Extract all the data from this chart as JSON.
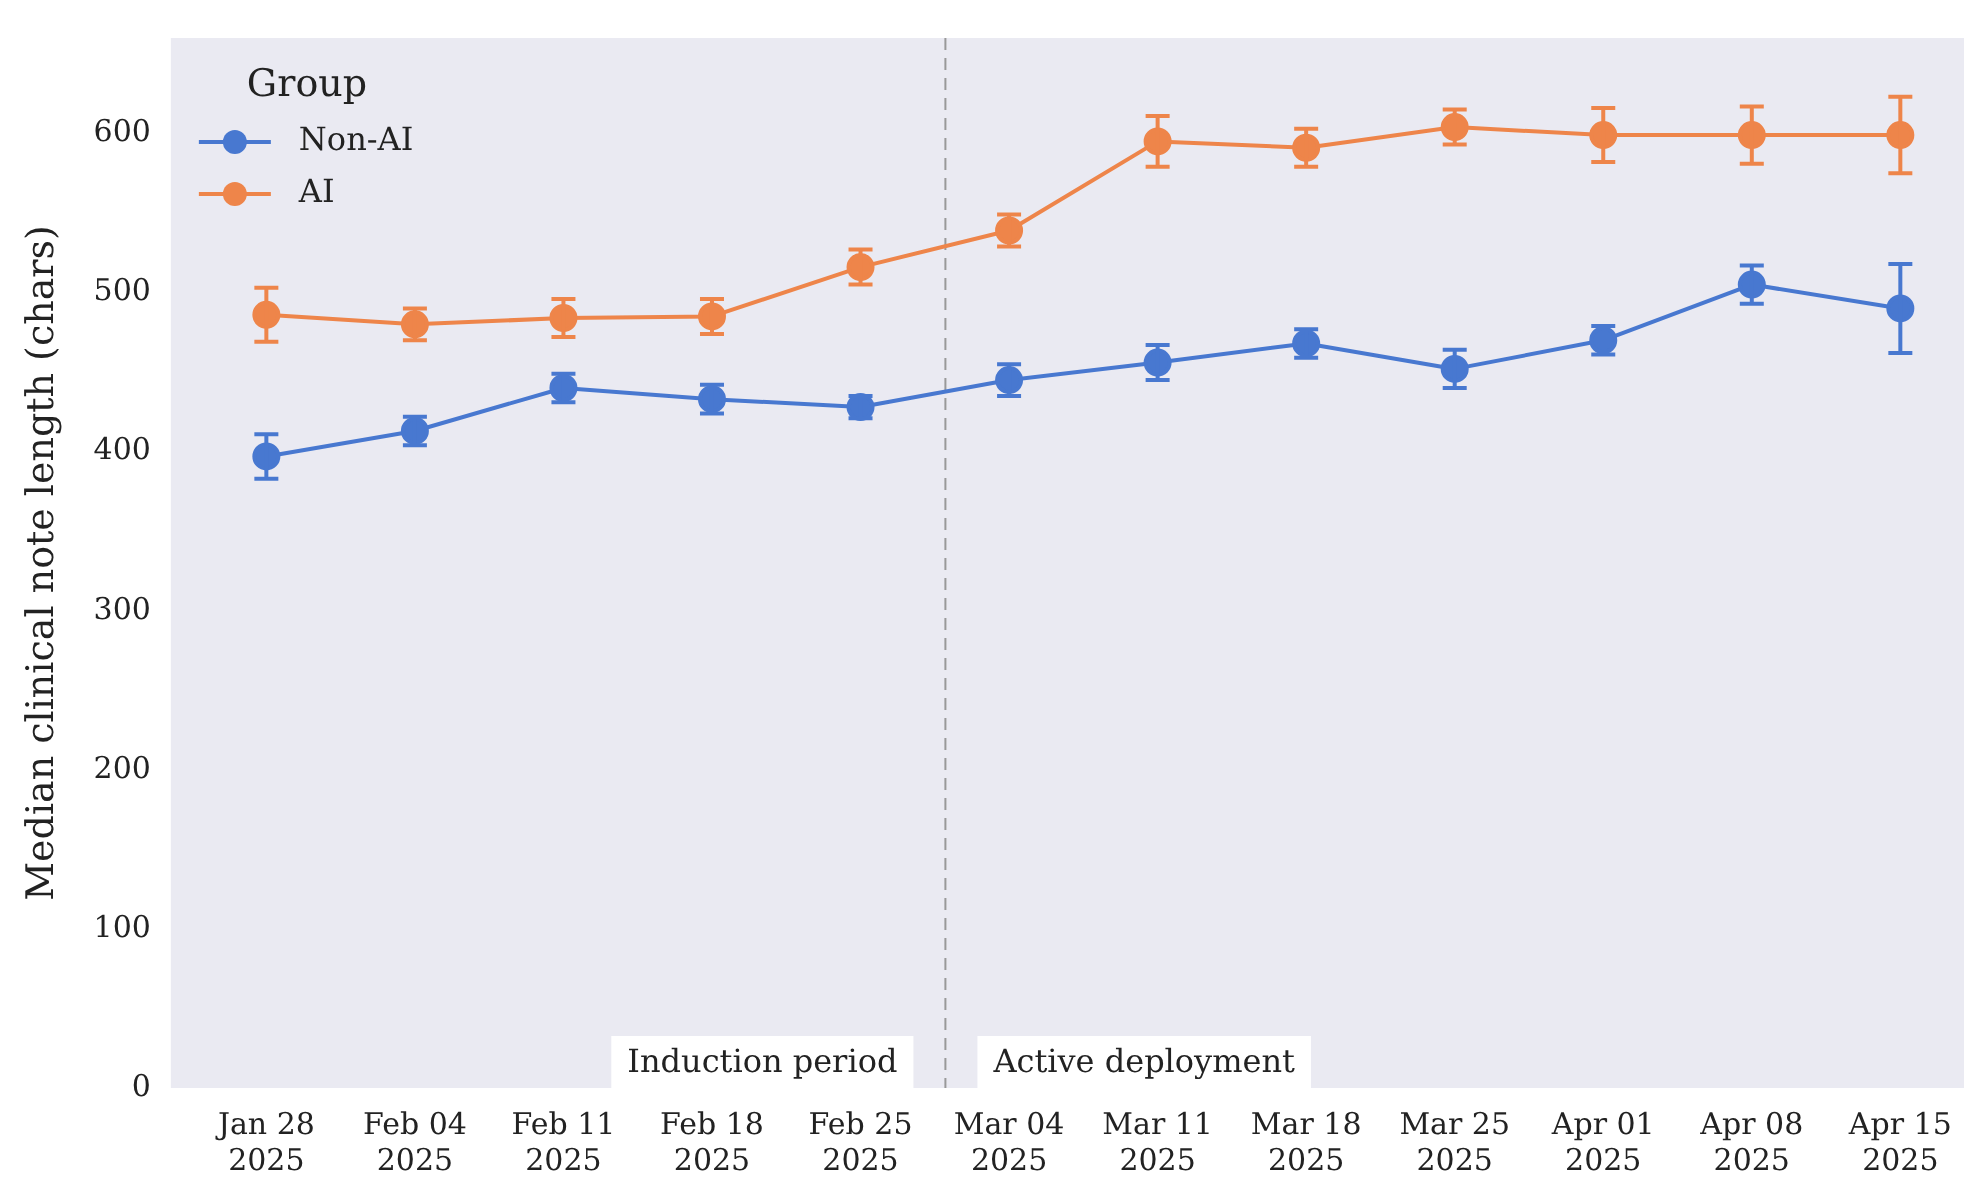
{
  "chart_data": {
    "type": "line",
    "ylabel": "Median clinical note length (chars)",
    "legend_title": "Group",
    "legend": "top left",
    "marker": "circle",
    "grid": false,
    "x": [
      "2025-01-28",
      "2025-02-04",
      "2025-02-11",
      "2025-02-18",
      "2025-02-25",
      "2025-03-04",
      "2025-03-11",
      "2025-03-18",
      "2025-03-25",
      "2025-04-01",
      "2025-04-08",
      "2025-04-15"
    ],
    "xlim": [
      "2025-01-23T12:00",
      "2025-04-18T00:00"
    ],
    "xticks": [
      {
        "value": "2025-01-28",
        "label": "Jan 28\n2025"
      },
      {
        "value": "2025-02-04",
        "label": "Feb 04\n2025"
      },
      {
        "value": "2025-02-11",
        "label": "Feb 11\n2025"
      },
      {
        "value": "2025-02-18",
        "label": "Feb 18\n2025"
      },
      {
        "value": "2025-02-25",
        "label": "Feb 25\n2025"
      },
      {
        "value": "2025-03-04",
        "label": "Mar 04\n2025"
      },
      {
        "value": "2025-03-11",
        "label": "Mar 11\n2025"
      },
      {
        "value": "2025-03-18",
        "label": "Mar 18\n2025"
      },
      {
        "value": "2025-03-25",
        "label": "Mar 25\n2025"
      },
      {
        "value": "2025-04-01",
        "label": "Apr 01\n2025"
      },
      {
        "value": "2025-04-08",
        "label": "Apr 08\n2025"
      },
      {
        "value": "2025-04-15",
        "label": "Apr 15\n2025"
      }
    ],
    "ylim": [
      0,
      660
    ],
    "yticks": [
      0,
      100,
      200,
      300,
      400,
      500,
      600
    ],
    "series": [
      {
        "name": "Non-AI",
        "color": "#4878d0",
        "values": [
          397,
          413,
          440,
          433,
          428,
          445,
          456,
          468,
          452,
          470,
          505,
          490
        ],
        "errors": [
          14,
          9,
          9,
          9,
          7,
          10,
          11,
          9,
          12,
          9,
          12,
          28
        ]
      },
      {
        "name": "AI",
        "color": "#ee854a",
        "values": [
          486,
          480,
          484,
          485,
          516,
          539,
          595,
          591,
          604,
          599,
          599,
          599
        ],
        "errors": [
          17,
          10,
          12,
          11,
          11,
          10,
          16,
          12,
          11,
          17,
          18,
          24
        ]
      }
    ],
    "ref_lines": [
      {
        "axis": "x",
        "value": "2025-03-01",
        "color": "#999999",
        "line_style": "dashed"
      }
    ],
    "annotations": [
      "Induction period",
      "Active deployment"
    ]
  }
}
